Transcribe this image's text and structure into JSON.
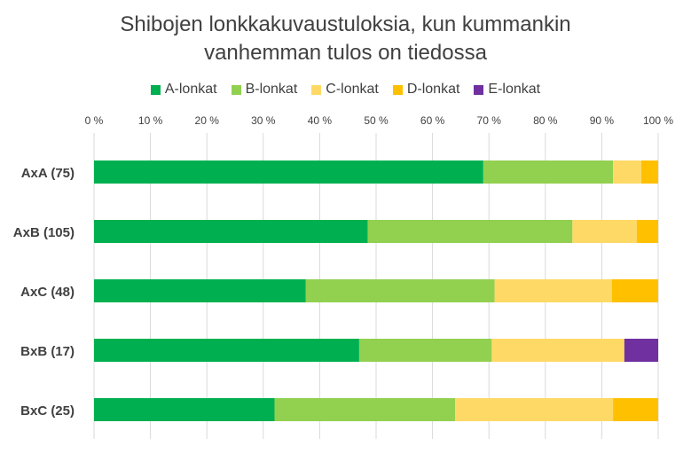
{
  "chart_data": {
    "type": "bar",
    "orientation": "horizontal",
    "stacked": "percent",
    "title_lines": [
      "Shibojen lonkkakuvaustuloksia, kun kummankin",
      "vanhemman tulos on tiedossa"
    ],
    "categories": [
      "AxA (75)",
      "AxB (105)",
      "AxC (48)",
      "BxB (17)",
      "BxC (25)"
    ],
    "series": [
      {
        "name": "A-lonkat",
        "color": "#00B050",
        "values": [
          69,
          48.5,
          37.5,
          47,
          32
        ]
      },
      {
        "name": "B-lonkat",
        "color": "#92D050",
        "values": [
          23,
          36.3,
          33.5,
          23.5,
          32
        ]
      },
      {
        "name": "C-lonkat",
        "color": "#FFD966",
        "values": [
          5,
          11.4,
          20.8,
          23.5,
          28
        ]
      },
      {
        "name": "D-lonkat",
        "color": "#FFC000",
        "values": [
          3,
          3.8,
          8.2,
          0,
          8
        ]
      },
      {
        "name": "E-lonkat",
        "color": "#7030A0",
        "values": [
          0,
          0,
          0,
          6,
          0
        ]
      }
    ],
    "x_ticks": [
      "0 %",
      "10 %",
      "20 %",
      "30 %",
      "40 %",
      "50 %",
      "60 %",
      "70 %",
      "80 %",
      "90 %",
      "100 %"
    ],
    "xlim": [
      0,
      100
    ],
    "grid": true,
    "legend_position": "top"
  }
}
